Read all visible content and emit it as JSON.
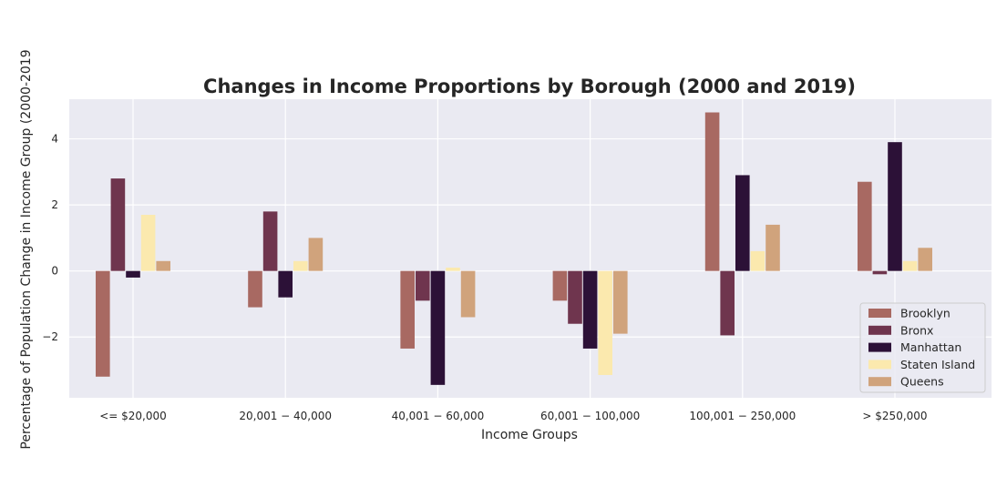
{
  "chart_data": {
    "type": "bar",
    "title": "Changes in Income Proportions by Borough (2000 and 2019)",
    "xlabel": "Income Groups",
    "ylabel": "Percentage of Population Change in Income Group (2000-2019",
    "categories": [
      "<= $20,000",
      "20,001 − 40,000",
      "40,001 − 60,000",
      "60,001 − 100,000",
      "100,001 − 250,000",
      "> $250,000"
    ],
    "series": [
      {
        "name": "Brooklyn",
        "color": "#a86962",
        "values": [
          -3.2,
          -1.1,
          -2.35,
          -0.9,
          4.8,
          2.7
        ]
      },
      {
        "name": "Bronx",
        "color": "#6f354e",
        "values": [
          2.8,
          1.8,
          -0.9,
          -1.6,
          -1.95,
          -0.1
        ]
      },
      {
        "name": "Manhattan",
        "color": "#2c1137",
        "values": [
          -0.2,
          -0.8,
          -3.45,
          -2.35,
          2.9,
          3.9
        ]
      },
      {
        "name": "Staten Island",
        "color": "#fbe9ae",
        "values": [
          1.7,
          0.3,
          0.1,
          -3.15,
          0.6,
          0.3
        ]
      },
      {
        "name": "Queens",
        "color": "#d0a37c",
        "values": [
          0.3,
          1.0,
          -1.4,
          -1.9,
          1.4,
          0.7
        ]
      }
    ],
    "yticks": [
      -2,
      0,
      2,
      4
    ],
    "ytick_labels": [
      "−2",
      "0",
      "2",
      "4"
    ],
    "ylim": [
      -3.84,
      5.2
    ],
    "grid": true,
    "legend_position": "lower right"
  }
}
